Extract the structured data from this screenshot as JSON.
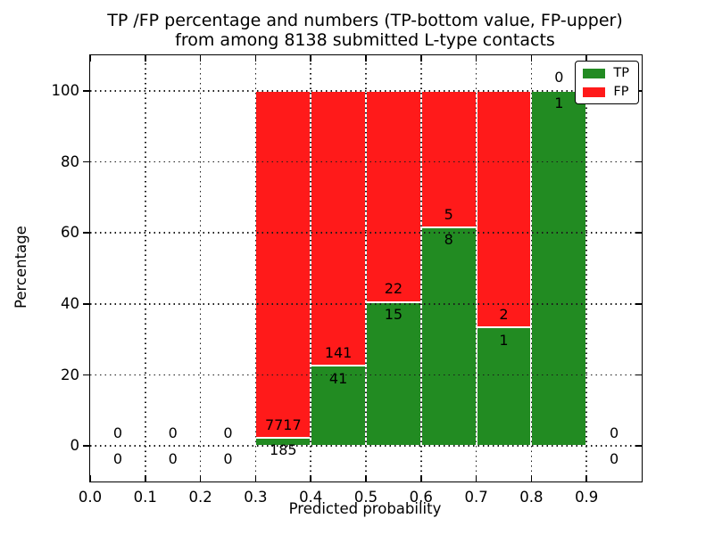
{
  "chart_data": {
    "type": "bar",
    "stacked": true,
    "percentage_stack": true,
    "title_lines": [
      "TP /FP percentage and numbers (TP-bottom value, FP-upper)",
      "from among 8138 submitted L-type contacts"
    ],
    "xlabel": "Predicted probability",
    "ylabel": "Percentage",
    "xlim": [
      0.0,
      1.0
    ],
    "ylim": [
      -10,
      110
    ],
    "xticks": [
      "0.0",
      "0.1",
      "0.2",
      "0.3",
      "0.4",
      "0.5",
      "0.6",
      "0.7",
      "0.8",
      "0.9"
    ],
    "yticks": [
      "0",
      "20",
      "40",
      "60",
      "80",
      "100"
    ],
    "grid": "dotted-black-drawn-over-bars",
    "total_submitted": 8138,
    "bin_width": 0.1,
    "annotation_note": "TP count below green/red boundary, FP count above it",
    "colors": {
      "tp": "#228b22",
      "fp": "#ff1a1a",
      "bar_edge": "#ffffff"
    },
    "legend": {
      "position": "upper right",
      "entries": [
        {
          "label": "TP",
          "color": "#228b22"
        },
        {
          "label": "FP",
          "color": "#ff1a1a"
        }
      ]
    },
    "bins": [
      {
        "x_start": 0.0,
        "x_end": 0.1,
        "tp_count": 0,
        "fp_count": 0,
        "tp_percent": null
      },
      {
        "x_start": 0.1,
        "x_end": 0.2,
        "tp_count": 0,
        "fp_count": 0,
        "tp_percent": null
      },
      {
        "x_start": 0.2,
        "x_end": 0.3,
        "tp_count": 0,
        "fp_count": 0,
        "tp_percent": null
      },
      {
        "x_start": 0.3,
        "x_end": 0.4,
        "tp_count": 185,
        "fp_count": 7717,
        "tp_percent": 2.34
      },
      {
        "x_start": 0.4,
        "x_end": 0.5,
        "tp_count": 41,
        "fp_count": 141,
        "tp_percent": 22.53
      },
      {
        "x_start": 0.5,
        "x_end": 0.6,
        "tp_count": 15,
        "fp_count": 22,
        "tp_percent": 40.54
      },
      {
        "x_start": 0.6,
        "x_end": 0.7,
        "tp_count": 8,
        "fp_count": 5,
        "tp_percent": 61.54
      },
      {
        "x_start": 0.7,
        "x_end": 0.8,
        "tp_count": 1,
        "fp_count": 2,
        "tp_percent": 33.33
      },
      {
        "x_start": 0.8,
        "x_end": 0.9,
        "tp_count": 1,
        "fp_count": 0,
        "tp_percent": 100
      },
      {
        "x_start": 0.9,
        "x_end": 1.0,
        "tp_count": 0,
        "fp_count": 0,
        "tp_percent": null
      }
    ]
  }
}
